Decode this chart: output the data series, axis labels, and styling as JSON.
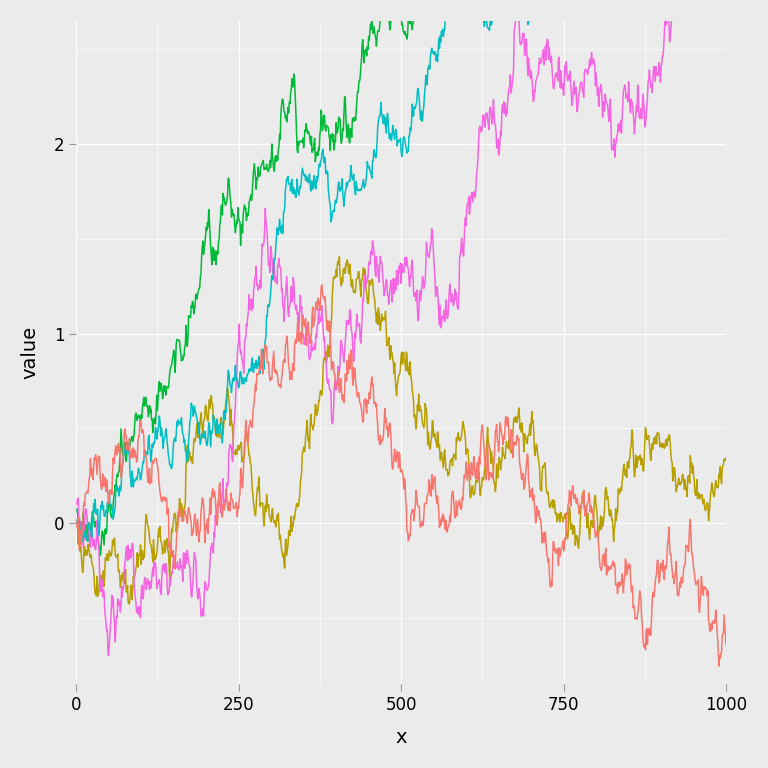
{
  "title": "",
  "xlabel": "x",
  "ylabel": "value",
  "xlim": [
    0,
    1000
  ],
  "ylim": [
    -0.85,
    2.65
  ],
  "background_color": "#EBEBEB",
  "grid_color": "#FFFFFF",
  "line_colors": [
    "#00BA38",
    "#B79F00",
    "#F564E3",
    "#00BFC4",
    "#F8766D"
  ],
  "line_width": 1.1,
  "xticks": [
    0,
    250,
    500,
    750,
    1000
  ],
  "yticks": [
    0,
    1,
    2
  ],
  "n_points": 1000,
  "tick_label_size": 12,
  "axis_label_size": 14
}
